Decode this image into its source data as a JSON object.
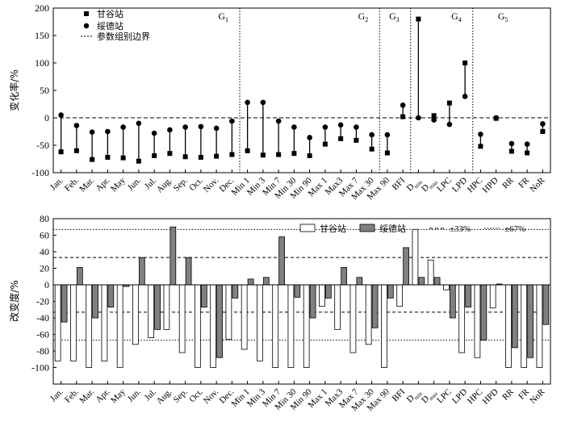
{
  "chart_data": [
    {
      "type": "scatter",
      "ylabel": "变化率/%",
      "ylim": [
        -100,
        200
      ],
      "yticks": [
        -100,
        -50,
        0,
        50,
        100,
        150,
        200
      ],
      "grid": false,
      "legend_position": "top-left",
      "legend": [
        "甘谷站",
        "绥德站",
        "参数组别边界"
      ],
      "groups": [
        {
          "label": "G1",
          "sub": "1",
          "after_index": 11
        },
        {
          "label": "G2",
          "sub": "2",
          "after_index": 20
        },
        {
          "label": "G3",
          "sub": "3",
          "after_index": 22
        },
        {
          "label": "G4",
          "sub": "4",
          "after_index": 26
        },
        {
          "label": "G5",
          "sub": "5",
          "after_index": 29
        }
      ],
      "categories": [
        "Jan.",
        "Feb.",
        "Mar.",
        "Apr.",
        "May",
        "Jun.",
        "Jul.",
        "Aug.",
        "Sep.",
        "Oct.",
        "Nov.",
        "Dec.",
        "Min 1",
        "Min 3",
        "Min 7",
        "Min 30",
        "Min 90",
        "Max 1",
        "Max3",
        "Max 7",
        "Max 30",
        "Max 90",
        "BFI",
        "Dmin",
        "Dmax",
        "LPC",
        "LPD",
        "HPC",
        "HPD",
        "RR",
        "FR",
        "NoR"
      ],
      "category_main": [
        "Jan.",
        "Feb.",
        "Mar.",
        "Apr.",
        "May",
        "Jun.",
        "Jul.",
        "Aug.",
        "Sep.",
        "Oct.",
        "Nov.",
        "Dec.",
        "Min 1",
        "Min 3",
        "Min 7",
        "Min 30",
        "Min 90",
        "Max 1",
        "Max3",
        "Max 7",
        "Max 30",
        "Max 90",
        "BFI",
        "D",
        "D",
        "LPC",
        "LPD",
        "HPC",
        "HPD",
        "RR",
        "FR",
        "NoR"
      ],
      "category_sub": [
        "",
        "",
        "",
        "",
        "",
        "",
        "",
        "",
        "",
        "",
        "",
        "",
        "",
        "",
        "",
        "",
        "",
        "",
        "",
        "",
        "",
        "",
        "",
        "min",
        "max",
        "",
        "",
        "",
        "",
        "",
        "",
        ""
      ],
      "series": [
        {
          "name": "甘谷站",
          "marker": "square",
          "values": [
            -62,
            -60,
            -76,
            -72,
            -73,
            -79,
            -69,
            -65,
            -71,
            -72,
            -70,
            -67,
            -60,
            -68,
            -67,
            -65,
            -69,
            -48,
            -38,
            -41,
            -57,
            -64,
            2,
            180,
            4,
            27,
            100,
            -52,
            -1,
            -61,
            -64,
            -25
          ]
        },
        {
          "name": "绥德站",
          "marker": "circle",
          "values": [
            5,
            -14,
            -26,
            -25,
            -17,
            -10,
            -28,
            -22,
            -17,
            -16,
            -19,
            -6,
            28,
            28,
            -6,
            -17,
            -36,
            -17,
            -13,
            -17,
            -31,
            -31,
            23,
            0,
            -4,
            -12,
            39,
            -30,
            0,
            -47,
            -48,
            -11
          ]
        }
      ]
    },
    {
      "type": "bar",
      "ylabel": "改变度/%",
      "ylim": [
        -120,
        80
      ],
      "yticks": [
        -100,
        -80,
        -60,
        -40,
        -20,
        0,
        20,
        40,
        60,
        80
      ],
      "grid": false,
      "legend_position": "top-right",
      "legend": [
        "甘谷站",
        "绥德站",
        "±33%",
        "±67%"
      ],
      "reference_lines": [
        {
          "label": "±33%",
          "values": [
            33,
            -33
          ],
          "style": "dashed"
        },
        {
          "label": "±67%",
          "values": [
            67,
            -67
          ],
          "style": "dotted"
        }
      ],
      "categories": [
        "Jan.",
        "Feb.",
        "Mar.",
        "Apr.",
        "May",
        "Jun.",
        "Jul.",
        "Aug.",
        "Sep.",
        "Oct.",
        "Nov.",
        "Dec.",
        "Min 1",
        "Min 3",
        "Min 7",
        "Min 30",
        "Min 90",
        "Max 1",
        "Max3",
        "Max 7",
        "Max 30",
        "Max 90",
        "BFI",
        "Dmin",
        "Dmax",
        "LPC",
        "LPD",
        "HPC",
        "HPD",
        "RR",
        "FR",
        "NoR"
      ],
      "category_main": [
        "Jan.",
        "Feb.",
        "Mar.",
        "Apr.",
        "May",
        "Jun.",
        "Jul.",
        "Aug.",
        "Sep.",
        "Oct.",
        "Nov.",
        "Dec.",
        "Min 1",
        "Min 3",
        "Min 7",
        "Min 30",
        "Min 90",
        "Max 1",
        "Max3",
        "Max 7",
        "Max 30",
        "Max 90",
        "BFI",
        "D",
        "D",
        "LPC",
        "LPD",
        "HPC",
        "HPD",
        "RR",
        "FR",
        "NoR"
      ],
      "category_sub": [
        "",
        "",
        "",
        "",
        "",
        "",
        "",
        "",
        "",
        "",
        "",
        "",
        "",
        "",
        "",
        "",
        "",
        "",
        "",
        "",
        "",
        "",
        "",
        "min",
        "max",
        "",
        "",
        "",
        "",
        "",
        "",
        ""
      ],
      "series": [
        {
          "name": "甘谷站",
          "color": "#ffffff",
          "values": [
            -92,
            -92,
            -100,
            -92,
            -100,
            -72,
            -64,
            -54,
            -82,
            -100,
            -100,
            -66,
            -78,
            -92,
            -100,
            -100,
            -100,
            -26,
            -54,
            -82,
            -72,
            -100,
            -26,
            67,
            30,
            -6,
            -82,
            -88,
            -28,
            -100,
            -100,
            -100
          ]
        },
        {
          "name": "绥德站",
          "color": "#808080",
          "values": [
            -45,
            21,
            -40,
            -27,
            -2,
            33,
            -54,
            70,
            33,
            -27,
            -88,
            -16,
            7,
            9,
            58,
            -15,
            -40,
            -16,
            21,
            9,
            -52,
            -16,
            45,
            9,
            9,
            -40,
            -27,
            -67,
            1,
            -76,
            -88,
            -48
          ]
        }
      ]
    }
  ]
}
